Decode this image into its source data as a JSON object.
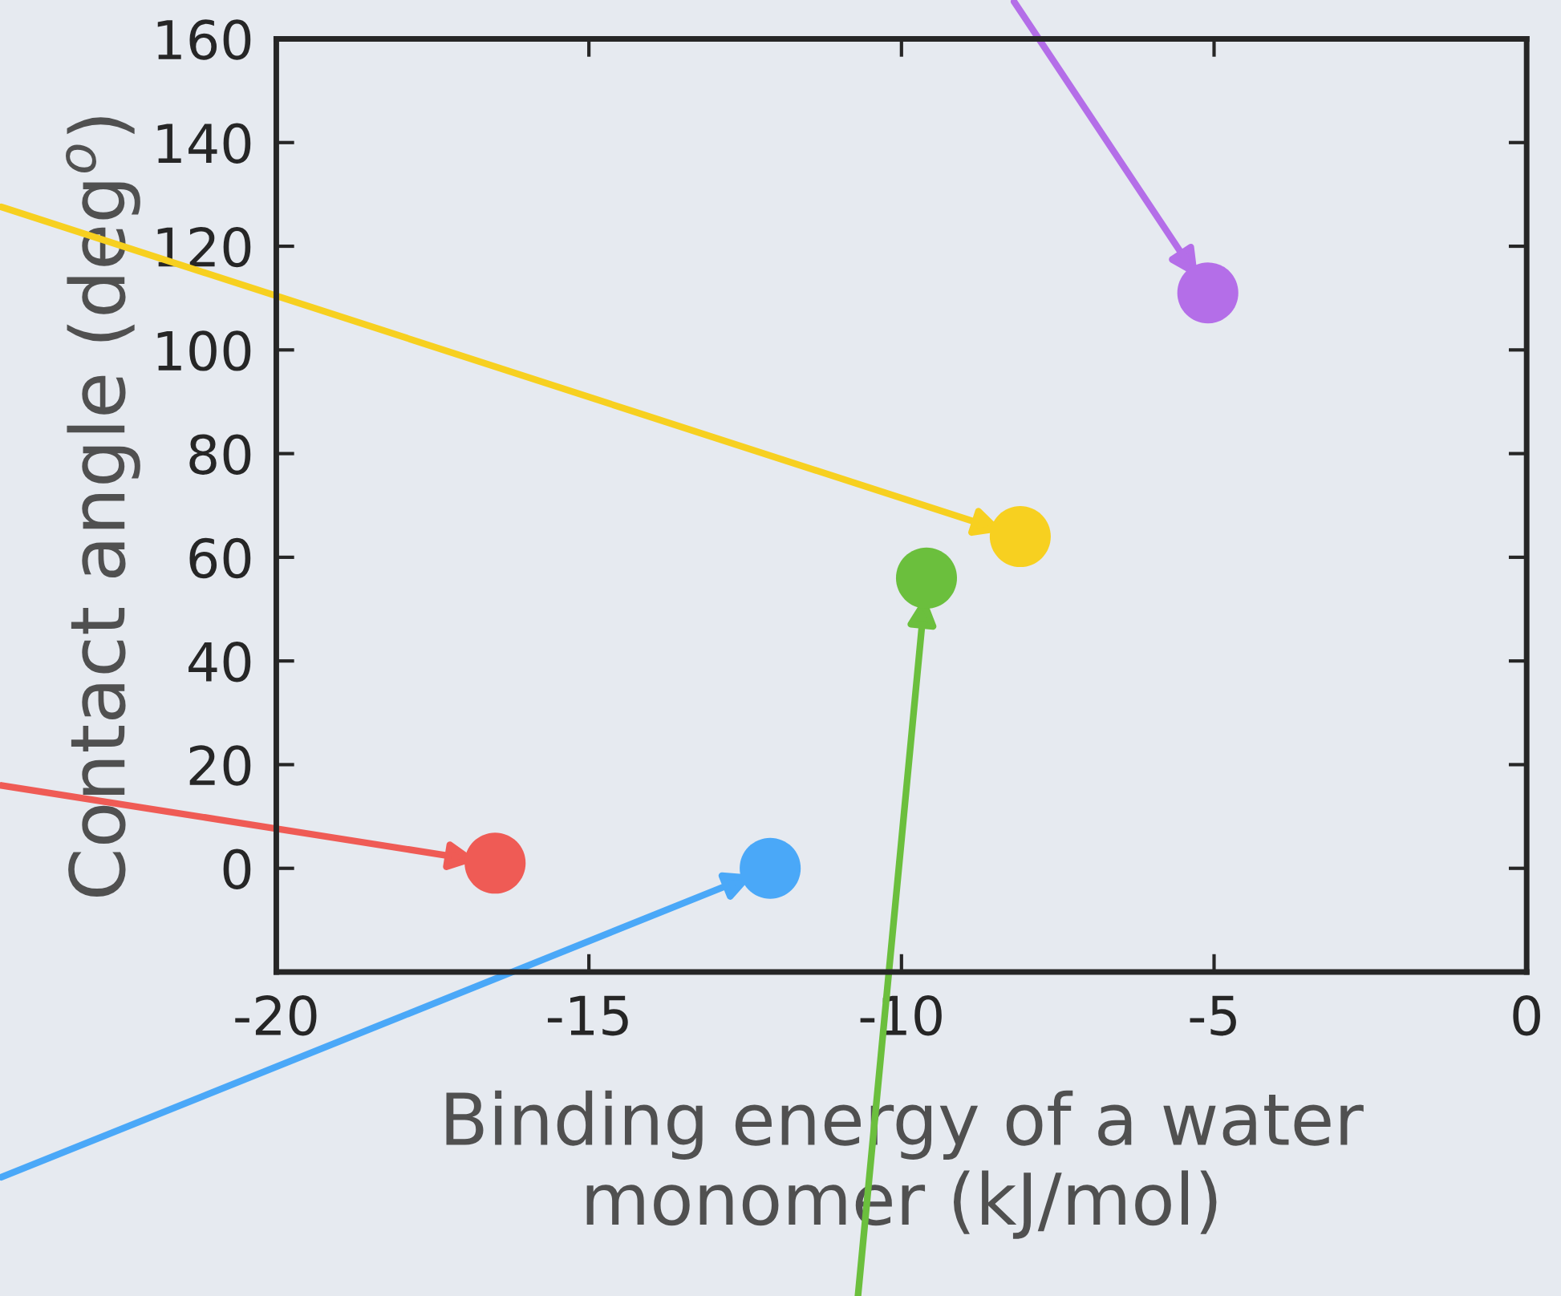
{
  "chart_data": {
    "type": "scatter",
    "xlabel": "Binding energy of a water\nmonomer (kJ/mol)",
    "ylabel": "Contact angle (deg$^{o}$)",
    "x": [
      -16.5,
      -12.1,
      -9.6,
      -8.1,
      -5.1
    ],
    "values": [
      1,
      0,
      56,
      64,
      111
    ],
    "colors": [
      "#ef5b55",
      "#4aa8f8",
      "#6bbf3d",
      "#f7d020",
      "#b46ee8"
    ],
    "xlim": [
      -20,
      0
    ],
    "xticks": [
      -20,
      -15,
      -10,
      -5,
      0
    ],
    "ylim": [
      -20,
      160
    ],
    "yticks": [
      0,
      20,
      40,
      60,
      80,
      100,
      120,
      140,
      160
    ],
    "marker": "circle",
    "grid": false
  }
}
